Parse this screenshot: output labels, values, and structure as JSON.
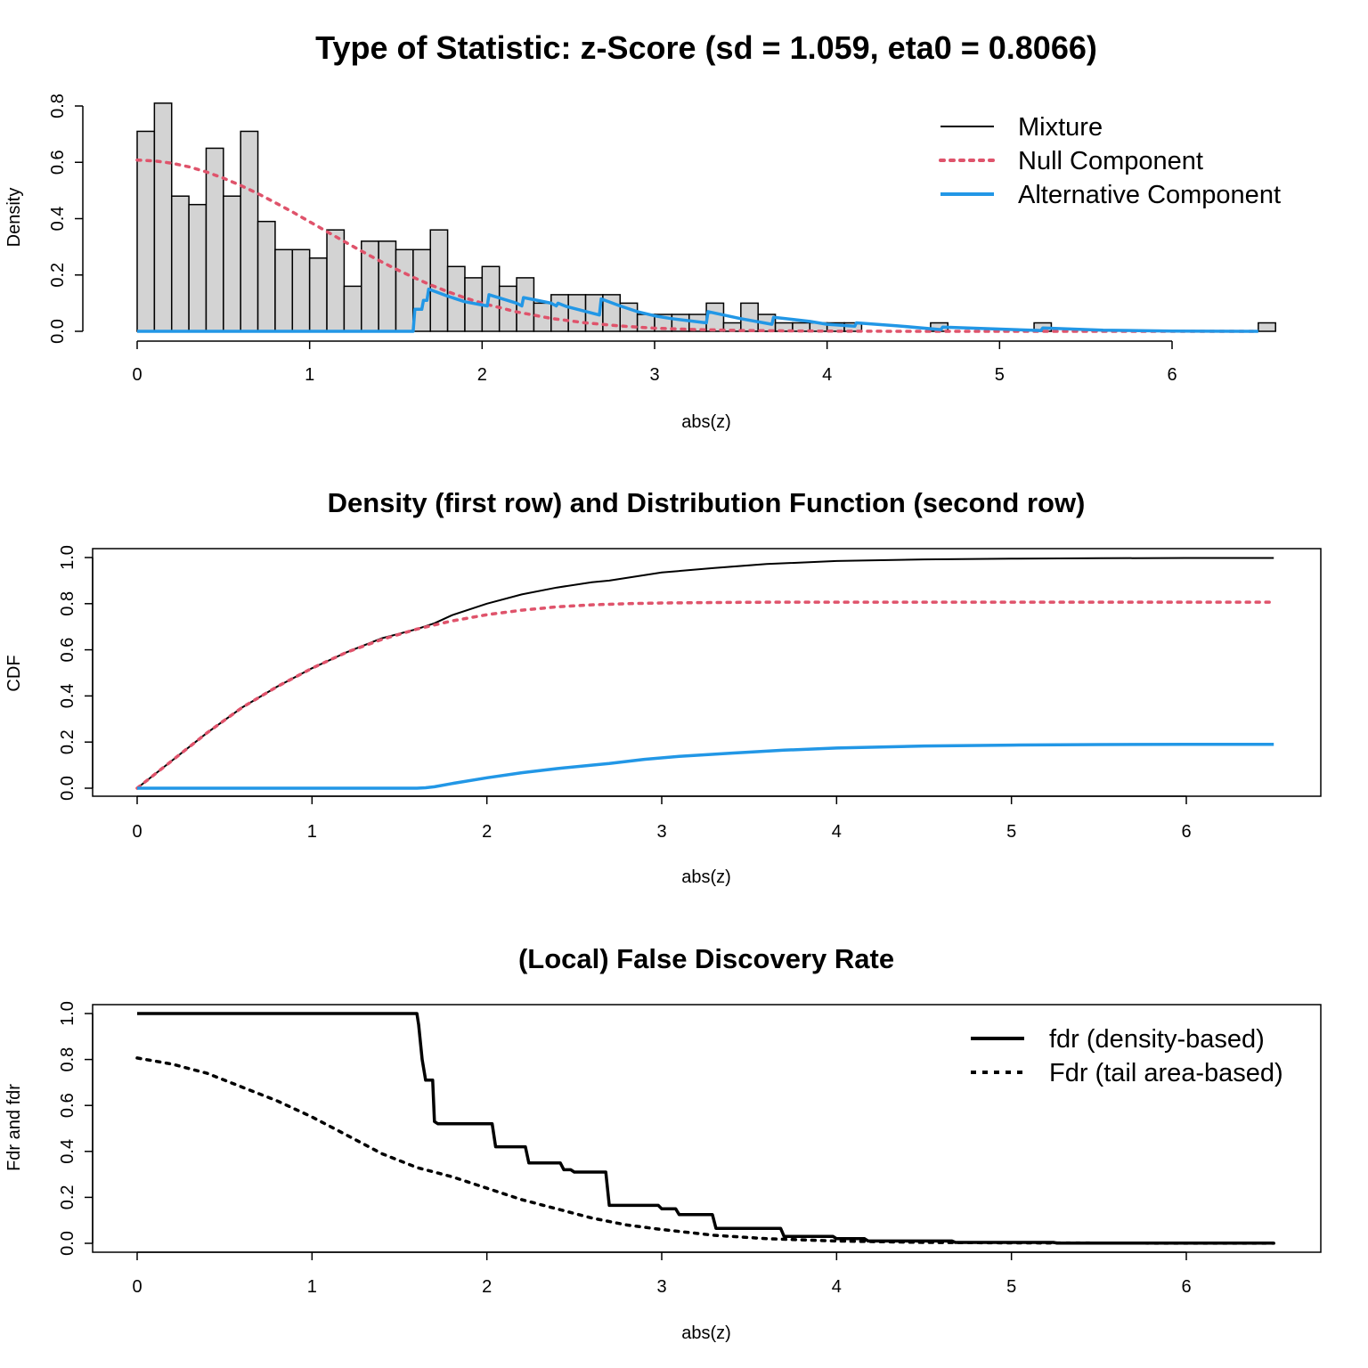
{
  "colors": {
    "mixture": "#000000",
    "null_component": "#DF536B",
    "alternative_component": "#2297E6",
    "bars_fill": "#D3D3D3",
    "bars_stroke": "#000000"
  },
  "chart_data": [
    {
      "type": "bar",
      "panel": "density",
      "title": "Type of Statistic: z-Score  (sd = 1.059, eta0 = 0.8066)",
      "xlabel": "abs(z)",
      "ylabel": "Density",
      "xlim": [
        0,
        6.6
      ],
      "ylim": [
        0,
        0.85
      ],
      "x_ticks": [
        "0",
        "1",
        "2",
        "3",
        "4",
        "5",
        "6"
      ],
      "y_ticks": [
        "0.0",
        "0.2",
        "0.4",
        "0.6",
        "0.8"
      ],
      "bin_width": 0.1,
      "bin_start": 0,
      "values": [
        0.71,
        0.81,
        0.48,
        0.45,
        0.65,
        0.48,
        0.71,
        0.39,
        0.29,
        0.29,
        0.26,
        0.36,
        0.16,
        0.32,
        0.32,
        0.29,
        0.29,
        0.36,
        0.23,
        0.19,
        0.23,
        0.16,
        0.19,
        0.1,
        0.13,
        0.13,
        0.13,
        0.13,
        0.1,
        0.06,
        0.06,
        0.06,
        0.06,
        0.1,
        0.03,
        0.1,
        0.06,
        0.03,
        0.03,
        0.03,
        0.03,
        0.03,
        0.0,
        0.03,
        0.03,
        0.03,
        0.0,
        0.0,
        0.0,
        0.0,
        0.0,
        0.0,
        0.0,
        0.0,
        0.0,
        0.0,
        0.0,
        0.0,
        0.0,
        0.0,
        0.0,
        0.0,
        0.0,
        0.0,
        0.0,
        0.0,
        0.0,
        0.0,
        0.0,
        0.0,
        0.0,
        0.0,
        0.0,
        0.0,
        0.0,
        0.0,
        0.0,
        0.0,
        0.0,
        0.0,
        0.0,
        0.0,
        0.0,
        0.0,
        0.0,
        0.0,
        0.0,
        0.0,
        0.0,
        0.0,
        0.0,
        0.0,
        0.0,
        0.0,
        0.0,
        0.0,
        0.0,
        0.0,
        0.0,
        0.0,
        0.0,
        0.0,
        0.0,
        0.0,
        0.0,
        0.0,
        0.0,
        0.0,
        0.0,
        0.0,
        0.0,
        0.0,
        0.0,
        0.0,
        0.0,
        0.0,
        0.0,
        0.0,
        0.0,
        0.0,
        0.0,
        0.0,
        0.0,
        0.0,
        0.0,
        0.0,
        0.0,
        0.0,
        0.0,
        0.0,
        0.0,
        0.0,
        0.0,
        0.0,
        0.0,
        0.0,
        0.0,
        0.0,
        0.0,
        0.0,
        0.0
      ],
      "extra_bars": [
        {
          "x0": 4.6,
          "x1": 4.7,
          "value": 0.03
        },
        {
          "x0": 5.2,
          "x1": 5.3,
          "value": 0.03
        },
        {
          "x0": 6.5,
          "x1": 6.6,
          "value": 0.03
        }
      ],
      "series": [
        {
          "name": "Mixture",
          "style": "solid-thin",
          "x": [],
          "y": []
        },
        {
          "name": "Null Component",
          "style": "dotted",
          "x": [
            0,
            0.1,
            0.2,
            0.3,
            0.4,
            0.5,
            0.6,
            0.7,
            0.8,
            0.9,
            1.0,
            1.1,
            1.2,
            1.3,
            1.4,
            1.5,
            1.6,
            1.7,
            1.8,
            1.9,
            2.0,
            2.2,
            2.4,
            2.6,
            2.8,
            3.0,
            3.2,
            3.5,
            4.0,
            4.5,
            5.0,
            6.0,
            6.5
          ],
          "y": [
            0.608,
            0.605,
            0.597,
            0.584,
            0.566,
            0.544,
            0.518,
            0.489,
            0.457,
            0.424,
            0.389,
            0.354,
            0.319,
            0.285,
            0.252,
            0.221,
            0.192,
            0.165,
            0.141,
            0.119,
            0.1,
            0.069,
            0.046,
            0.03,
            0.019,
            0.011,
            0.007,
            0.003,
            0.0005,
            0.0001,
            0.0,
            0.0,
            0.0
          ]
        },
        {
          "name": "Alternative Component",
          "style": "solid-thick",
          "x": [
            0,
            1.6,
            1.61,
            1.65,
            1.66,
            1.68,
            1.69,
            1.8,
            1.9,
            2.03,
            2.04,
            2.2,
            2.23,
            2.24,
            2.4,
            2.43,
            2.44,
            2.48,
            2.49,
            2.68,
            2.69,
            2.8,
            2.9,
            3.0,
            3.1,
            3.3,
            3.31,
            3.5,
            3.68,
            3.69,
            3.9,
            4.0,
            4.16,
            4.17,
            4.4,
            4.66,
            4.67,
            5.0,
            5.24,
            5.25,
            5.6,
            6.0,
            6.5
          ],
          "y": [
            0,
            0,
            0.078,
            0.078,
            0.11,
            0.11,
            0.15,
            0.125,
            0.105,
            0.09,
            0.13,
            0.1,
            0.09,
            0.12,
            0.1,
            0.09,
            0.1,
            0.09,
            0.088,
            0.058,
            0.115,
            0.09,
            0.07,
            0.055,
            0.045,
            0.03,
            0.07,
            0.045,
            0.025,
            0.05,
            0.035,
            0.025,
            0.018,
            0.03,
            0.02,
            0.006,
            0.015,
            0.008,
            0.003,
            0.012,
            0.004,
            0.001,
            0.0
          ]
        }
      ],
      "legend": {
        "placement": "top-right",
        "entries": [
          "Mixture",
          "Null Component",
          "Alternative Component"
        ]
      }
    },
    {
      "type": "line",
      "panel": "cdf",
      "title": "Density (first row) and Distribution Function (second row)",
      "xlabel": "abs(z)",
      "ylabel": "CDF",
      "xlim": [
        0,
        6.5
      ],
      "ylim": [
        0,
        1
      ],
      "x_ticks": [
        "0",
        "1",
        "2",
        "3",
        "4",
        "5",
        "6"
      ],
      "y_ticks": [
        "0.0",
        "0.2",
        "0.4",
        "0.6",
        "0.8",
        "1.0"
      ],
      "series": [
        {
          "name": "Mixture",
          "style": "solid-thin",
          "x": [
            0,
            0.2,
            0.4,
            0.6,
            0.8,
            1.0,
            1.2,
            1.4,
            1.6,
            1.7,
            1.8,
            2.0,
            2.2,
            2.4,
            2.6,
            2.7,
            3.0,
            3.3,
            3.6,
            4.0,
            4.5,
            5.0,
            5.5,
            6.0,
            6.5
          ],
          "y": [
            0,
            0.12,
            0.24,
            0.35,
            0.44,
            0.52,
            0.59,
            0.65,
            0.69,
            0.715,
            0.75,
            0.8,
            0.84,
            0.87,
            0.893,
            0.9,
            0.935,
            0.955,
            0.972,
            0.985,
            0.992,
            0.995,
            0.997,
            0.998,
            0.998
          ]
        },
        {
          "name": "Null Component",
          "style": "dotted",
          "x": [
            0,
            0.2,
            0.4,
            0.6,
            0.8,
            1.0,
            1.2,
            1.4,
            1.6,
            1.8,
            2.0,
            2.2,
            2.4,
            2.6,
            2.8,
            3.0,
            3.5,
            4.0,
            5.0,
            6.5
          ],
          "y": [
            0,
            0.12,
            0.24,
            0.35,
            0.44,
            0.52,
            0.59,
            0.645,
            0.69,
            0.725,
            0.752,
            0.772,
            0.786,
            0.795,
            0.8,
            0.803,
            0.806,
            0.8066,
            0.8066,
            0.8066
          ]
        },
        {
          "name": "Alternative Component",
          "style": "solid-thick",
          "x": [
            0,
            1.6,
            1.65,
            1.7,
            1.8,
            2.0,
            2.2,
            2.4,
            2.6,
            2.7,
            2.9,
            3.1,
            3.4,
            3.7,
            4.0,
            4.5,
            5.0,
            5.5,
            6.0,
            6.5
          ],
          "y": [
            0,
            0,
            0.002,
            0.006,
            0.02,
            0.045,
            0.067,
            0.085,
            0.1,
            0.107,
            0.125,
            0.138,
            0.152,
            0.165,
            0.174,
            0.183,
            0.187,
            0.189,
            0.19,
            0.19
          ]
        }
      ]
    },
    {
      "type": "line",
      "panel": "fdr",
      "title": "(Local) False Discovery Rate",
      "xlabel": "abs(z)",
      "ylabel": "Fdr and fdr",
      "xlim": [
        0,
        6.5
      ],
      "ylim": [
        0,
        1
      ],
      "x_ticks": [
        "0",
        "1",
        "2",
        "3",
        "4",
        "5",
        "6"
      ],
      "y_ticks": [
        "0.0",
        "0.2",
        "0.4",
        "0.6",
        "0.8",
        "1.0"
      ],
      "series": [
        {
          "name": "fdr (density-based)",
          "style": "solid-thick",
          "x": [
            0,
            1.6,
            1.61,
            1.63,
            1.65,
            1.66,
            1.69,
            1.7,
            1.72,
            2.03,
            2.05,
            2.22,
            2.24,
            2.42,
            2.44,
            2.48,
            2.5,
            2.68,
            2.7,
            2.98,
            3.0,
            3.08,
            3.1,
            3.29,
            3.31,
            3.68,
            3.7,
            3.98,
            4.0,
            4.16,
            4.18,
            4.66,
            4.68,
            5.24,
            5.26,
            6.5
          ],
          "y": [
            1.0,
            1.0,
            0.95,
            0.8,
            0.71,
            0.71,
            0.71,
            0.53,
            0.52,
            0.52,
            0.42,
            0.42,
            0.35,
            0.35,
            0.32,
            0.32,
            0.31,
            0.31,
            0.165,
            0.165,
            0.15,
            0.15,
            0.125,
            0.125,
            0.065,
            0.065,
            0.03,
            0.03,
            0.02,
            0.02,
            0.01,
            0.01,
            0.004,
            0.004,
            0.001,
            0.001
          ]
        },
        {
          "name": "Fdr (tail area-based)",
          "style": "dotted",
          "x": [
            0,
            0.2,
            0.4,
            0.6,
            0.8,
            1.0,
            1.2,
            1.4,
            1.6,
            1.8,
            2.0,
            2.2,
            2.4,
            2.6,
            2.8,
            3.0,
            3.3,
            3.6,
            4.0,
            4.5,
            5.0,
            6.0,
            6.5
          ],
          "y": [
            0.8066,
            0.78,
            0.74,
            0.68,
            0.62,
            0.55,
            0.47,
            0.39,
            0.33,
            0.29,
            0.24,
            0.19,
            0.15,
            0.11,
            0.08,
            0.06,
            0.035,
            0.02,
            0.01,
            0.004,
            0.002,
            0.0005,
            0.0002
          ]
        }
      ],
      "legend": {
        "placement": "top-right",
        "entries": [
          "fdr (density-based)",
          "Fdr (tail area-based)"
        ]
      }
    }
  ]
}
